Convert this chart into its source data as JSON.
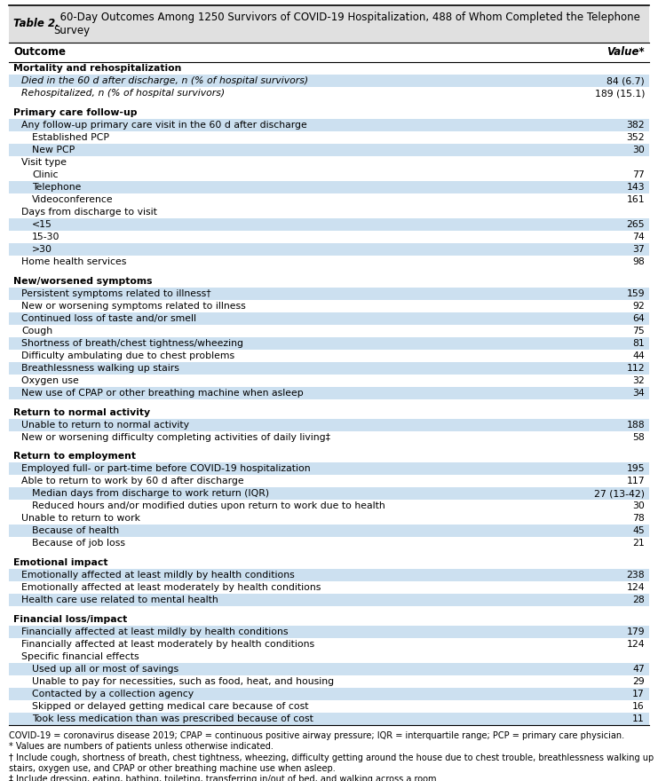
{
  "title_bold": "Table 2.",
  "title_rest": "  60-Day Outcomes Among 1250 Survivors of COVID-19 Hospitalization, 488 of Whom Completed the Telephone\nSurvey",
  "footnotes": [
    "COVID-19 = coronavirus disease 2019; CPAP = continuous positive airway pressure; IQR = interquartile range; PCP = primary care physician.",
    "* Values are numbers of patients unless otherwise indicated.",
    "† Include cough, shortness of breath, chest tightness, wheezing, difficulty getting around the house due to chest trouble, breathlessness walking up stairs, oxygen use, and CPAP or other breathing machine use when asleep.",
    "‡ Include dressing, eating, bathing, toileting, transferring in/out of bed, and walking across a room."
  ],
  "rows": [
    {
      "text": "Mortality and rehospitalization",
      "value": "",
      "level": 0,
      "section_header": true,
      "highlight": false,
      "italic": false
    },
    {
      "text": "Died in the 60 d after discharge, n (% of hospital survivors)",
      "value": "84 (6.7)",
      "level": 1,
      "section_header": false,
      "highlight": true,
      "italic": true
    },
    {
      "text": "Rehospitalized, n (% of hospital survivors)",
      "value": "189 (15.1)",
      "level": 1,
      "section_header": false,
      "highlight": false,
      "italic": true
    },
    {
      "text": "",
      "value": "",
      "level": 0,
      "section_header": false,
      "highlight": false,
      "spacer": true
    },
    {
      "text": "Primary care follow-up",
      "value": "",
      "level": 0,
      "section_header": true,
      "highlight": false,
      "italic": false
    },
    {
      "text": "Any follow-up primary care visit in the 60 d after discharge",
      "value": "382",
      "level": 1,
      "section_header": false,
      "highlight": true,
      "italic": false
    },
    {
      "text": "Established PCP",
      "value": "352",
      "level": 2,
      "section_header": false,
      "highlight": false,
      "italic": false
    },
    {
      "text": "New PCP",
      "value": "30",
      "level": 2,
      "section_header": false,
      "highlight": true,
      "italic": false
    },
    {
      "text": "Visit type",
      "value": "",
      "level": 1,
      "section_header": false,
      "highlight": false,
      "italic": false
    },
    {
      "text": "Clinic",
      "value": "77",
      "level": 2,
      "section_header": false,
      "highlight": false,
      "italic": false
    },
    {
      "text": "Telephone",
      "value": "143",
      "level": 2,
      "section_header": false,
      "highlight": true,
      "italic": false
    },
    {
      "text": "Videoconference",
      "value": "161",
      "level": 2,
      "section_header": false,
      "highlight": false,
      "italic": false
    },
    {
      "text": "Days from discharge to visit",
      "value": "",
      "level": 1,
      "section_header": false,
      "highlight": false,
      "italic": false
    },
    {
      "text": "<15",
      "value": "265",
      "level": 2,
      "section_header": false,
      "highlight": true,
      "italic": false
    },
    {
      "text": "15-30",
      "value": "74",
      "level": 2,
      "section_header": false,
      "highlight": false,
      "italic": false
    },
    {
      "text": ">30",
      "value": "37",
      "level": 2,
      "section_header": false,
      "highlight": true,
      "italic": false
    },
    {
      "text": "Home health services",
      "value": "98",
      "level": 1,
      "section_header": false,
      "highlight": false,
      "italic": false
    },
    {
      "text": "",
      "value": "",
      "level": 0,
      "section_header": false,
      "highlight": false,
      "spacer": true
    },
    {
      "text": "New/worsened symptoms",
      "value": "",
      "level": 0,
      "section_header": true,
      "highlight": false,
      "italic": false
    },
    {
      "text": "Persistent symptoms related to illness†",
      "value": "159",
      "level": 1,
      "section_header": false,
      "highlight": true,
      "italic": false
    },
    {
      "text": "New or worsening symptoms related to illness",
      "value": "92",
      "level": 1,
      "section_header": false,
      "highlight": false,
      "italic": false
    },
    {
      "text": "Continued loss of taste and/or smell",
      "value": "64",
      "level": 1,
      "section_header": false,
      "highlight": true,
      "italic": false
    },
    {
      "text": "Cough",
      "value": "75",
      "level": 1,
      "section_header": false,
      "highlight": false,
      "italic": false
    },
    {
      "text": "Shortness of breath/chest tightness/wheezing",
      "value": "81",
      "level": 1,
      "section_header": false,
      "highlight": true,
      "italic": false
    },
    {
      "text": "Difficulty ambulating due to chest problems",
      "value": "44",
      "level": 1,
      "section_header": false,
      "highlight": false,
      "italic": false
    },
    {
      "text": "Breathlessness walking up stairs",
      "value": "112",
      "level": 1,
      "section_header": false,
      "highlight": true,
      "italic": false
    },
    {
      "text": "Oxygen use",
      "value": "32",
      "level": 1,
      "section_header": false,
      "highlight": false,
      "italic": false
    },
    {
      "text": "New use of CPAP or other breathing machine when asleep",
      "value": "34",
      "level": 1,
      "section_header": false,
      "highlight": true,
      "italic": false
    },
    {
      "text": "",
      "value": "",
      "level": 0,
      "section_header": false,
      "highlight": false,
      "spacer": true
    },
    {
      "text": "Return to normal activity",
      "value": "",
      "level": 0,
      "section_header": true,
      "highlight": false,
      "italic": false
    },
    {
      "text": "Unable to return to normal activity",
      "value": "188",
      "level": 1,
      "section_header": false,
      "highlight": true,
      "italic": false
    },
    {
      "text": "New or worsening difficulty completing activities of daily living‡",
      "value": "58",
      "level": 1,
      "section_header": false,
      "highlight": false,
      "italic": false
    },
    {
      "text": "",
      "value": "",
      "level": 0,
      "section_header": false,
      "highlight": false,
      "spacer": true
    },
    {
      "text": "Return to employment",
      "value": "",
      "level": 0,
      "section_header": true,
      "highlight": false,
      "italic": false
    },
    {
      "text": "Employed full- or part-time before COVID-19 hospitalization",
      "value": "195",
      "level": 1,
      "section_header": false,
      "highlight": true,
      "italic": false
    },
    {
      "text": "Able to return to work by 60 d after discharge",
      "value": "117",
      "level": 1,
      "section_header": false,
      "highlight": false,
      "italic": false
    },
    {
      "text": "Median days from discharge to work return (IQR)",
      "value": "27 (13-42)",
      "level": 2,
      "section_header": false,
      "highlight": true,
      "italic": false
    },
    {
      "text": "Reduced hours and/or modified duties upon return to work due to health",
      "value": "30",
      "level": 2,
      "section_header": false,
      "highlight": false,
      "italic": false
    },
    {
      "text": "Unable to return to work",
      "value": "78",
      "level": 1,
      "section_header": false,
      "highlight": false,
      "italic": false
    },
    {
      "text": "Because of health",
      "value": "45",
      "level": 2,
      "section_header": false,
      "highlight": true,
      "italic": false
    },
    {
      "text": "Because of job loss",
      "value": "21",
      "level": 2,
      "section_header": false,
      "highlight": false,
      "italic": false
    },
    {
      "text": "",
      "value": "",
      "level": 0,
      "section_header": false,
      "highlight": false,
      "spacer": true
    },
    {
      "text": "Emotional impact",
      "value": "",
      "level": 0,
      "section_header": true,
      "highlight": false,
      "italic": false
    },
    {
      "text": "Emotionally affected at least mildly by health conditions",
      "value": "238",
      "level": 1,
      "section_header": false,
      "highlight": true,
      "italic": false
    },
    {
      "text": "Emotionally affected at least moderately by health conditions",
      "value": "124",
      "level": 1,
      "section_header": false,
      "highlight": false,
      "italic": false
    },
    {
      "text": "Health care use related to mental health",
      "value": "28",
      "level": 1,
      "section_header": false,
      "highlight": true,
      "italic": false
    },
    {
      "text": "",
      "value": "",
      "level": 0,
      "section_header": false,
      "highlight": false,
      "spacer": true
    },
    {
      "text": "Financial loss/impact",
      "value": "",
      "level": 0,
      "section_header": true,
      "highlight": false,
      "italic": false
    },
    {
      "text": "Financially affected at least mildly by health conditions",
      "value": "179",
      "level": 1,
      "section_header": false,
      "highlight": true,
      "italic": false
    },
    {
      "text": "Financially affected at least moderately by health conditions",
      "value": "124",
      "level": 1,
      "section_header": false,
      "highlight": false,
      "italic": false
    },
    {
      "text": "Specific financial effects",
      "value": "",
      "level": 1,
      "section_header": false,
      "highlight": false,
      "italic": false
    },
    {
      "text": "Used up all or most of savings",
      "value": "47",
      "level": 2,
      "section_header": false,
      "highlight": true,
      "italic": false
    },
    {
      "text": "Unable to pay for necessities, such as food, heat, and housing",
      "value": "29",
      "level": 2,
      "section_header": false,
      "highlight": false,
      "italic": false
    },
    {
      "text": "Contacted by a collection agency",
      "value": "17",
      "level": 2,
      "section_header": false,
      "highlight": true,
      "italic": false
    },
    {
      "text": "Skipped or delayed getting medical care because of cost",
      "value": "16",
      "level": 2,
      "section_header": false,
      "highlight": false,
      "italic": false
    },
    {
      "text": "Took less medication than was prescribed because of cost",
      "value": "11",
      "level": 2,
      "section_header": false,
      "highlight": true,
      "italic": false
    }
  ],
  "highlight_color": "#cce0f0",
  "title_bg_color": "#e0e0e0",
  "font_size": 7.8,
  "title_font_size": 8.5,
  "header_font_size": 8.5,
  "footnote_font_size": 7.0
}
